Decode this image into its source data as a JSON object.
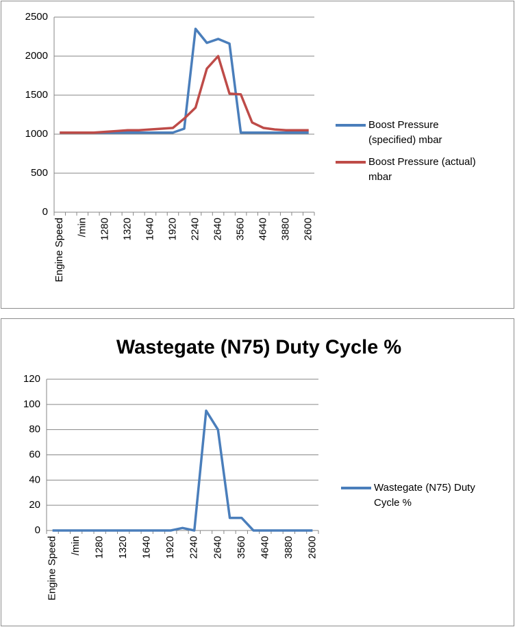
{
  "chart_data": [
    {
      "type": "line",
      "categories": [
        "Engine Speed",
        null,
        "/min",
        null,
        "1280",
        null,
        "1320",
        null,
        "1640",
        null,
        "1920",
        null,
        "2240",
        null,
        "2640",
        null,
        "3560",
        null,
        "4640",
        null,
        "3880",
        null,
        "2600"
      ],
      "series": [
        {
          "name": "Boost Pressure (specified)  mbar",
          "color": "#4a7ebb",
          "values": [
            1020,
            1020,
            1020,
            1020,
            1020,
            1020,
            1020,
            1020,
            1020,
            1020,
            1020,
            1070,
            2350,
            2170,
            2220,
            2160,
            1020,
            1020,
            1020,
            1020,
            1020,
            1020,
            1020
          ]
        },
        {
          "name": "Boost Pressure (actual) mbar",
          "color": "#be4b48",
          "values": [
            1020,
            1020,
            1020,
            1020,
            1030,
            1040,
            1050,
            1050,
            1060,
            1070,
            1080,
            1200,
            1340,
            1840,
            2000,
            1520,
            1510,
            1150,
            1080,
            1060,
            1050,
            1050,
            1050
          ]
        }
      ],
      "ylim": [
        0,
        2500
      ],
      "yticks": [
        0,
        500,
        1000,
        1500,
        2000,
        2500
      ],
      "grid": true,
      "legend": "right"
    },
    {
      "type": "line",
      "title": "Wastegate (N75) Duty Cycle  %",
      "categories": [
        "Engine Speed",
        null,
        "/min",
        null,
        "1280",
        null,
        "1320",
        null,
        "1640",
        null,
        "1920",
        null,
        "2240",
        null,
        "2640",
        null,
        "3560",
        null,
        "4640",
        null,
        "3880",
        null,
        "2600"
      ],
      "series": [
        {
          "name": "Wastegate (N75) Duty Cycle  %",
          "color": "#4a7ebb",
          "values": [
            0,
            0,
            0,
            0,
            0,
            0,
            0,
            0,
            0,
            0,
            0,
            2,
            0,
            95,
            80,
            10,
            10,
            0,
            0,
            0,
            0,
            0,
            0
          ]
        }
      ],
      "ylim": [
        0,
        120
      ],
      "yticks": [
        0,
        20,
        40,
        60,
        80,
        100,
        120
      ],
      "grid": true,
      "legend": "right"
    }
  ]
}
